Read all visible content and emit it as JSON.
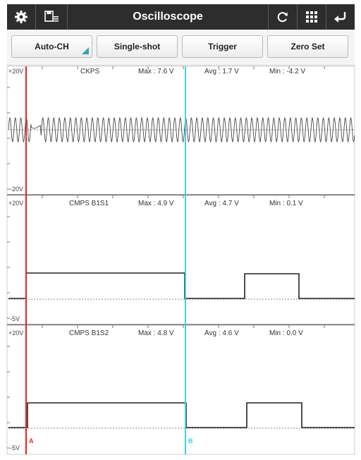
{
  "toolbar": {
    "title": "Oscilloscope",
    "icons": [
      "gear-icon",
      "save-list-icon",
      "refresh-icon",
      "grid-icon",
      "back-arrow-icon"
    ]
  },
  "buttons": {
    "auto_ch": "Auto-CH",
    "single_shot": "Single-shot",
    "trigger": "Trigger",
    "zero_set": "Zero Set"
  },
  "channels": [
    {
      "name": "CKPS",
      "max": "Max : 7.6 V",
      "avg": "Avg : 1.7 V",
      "min": "Min : -4.2 V",
      "top_label": "+20V",
      "bottom_label": "-20V"
    },
    {
      "name": "CMPS B1S1",
      "max": "Max : 4.9 V",
      "avg": "Avg : 4.7 V",
      "min": "Min : 0.1 V",
      "top_label": "+20V",
      "bottom_label": "-5V"
    },
    {
      "name": "CMPS B1S2",
      "max": "Max : 4.8 V",
      "avg": "Avg : 4.6 V",
      "min": "Min : 0.0 V",
      "top_label": "+20V",
      "bottom_label": "-5V"
    }
  ],
  "cursors": {
    "a": {
      "label": "A",
      "color": "#e8231f"
    },
    "b": {
      "label": "B",
      "color": "#39d3e8"
    }
  },
  "colors": {
    "toolbar_bg": "#2d2d2d",
    "accent": "#3aa0b8",
    "trace": "#222222"
  }
}
